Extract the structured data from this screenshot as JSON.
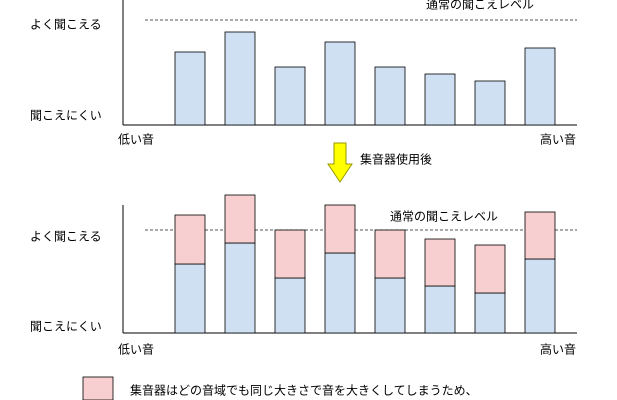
{
  "before": {
    "level_label": "通常の聞こえレベル",
    "good": "よく聞こえる",
    "poor": "聞こえにくい",
    "low": "低い音",
    "high": "高い音"
  },
  "arrow_label": "集音器使用後",
  "after": {
    "level_label": "通常の聞こえレベル",
    "good": "よく聞こえる",
    "poor": "聞こえにくい",
    "low": "低い音",
    "high": "高い音"
  },
  "legend": "集音器はどの音域でも同じ大きさで音を大きくしてしまうため、"
}
